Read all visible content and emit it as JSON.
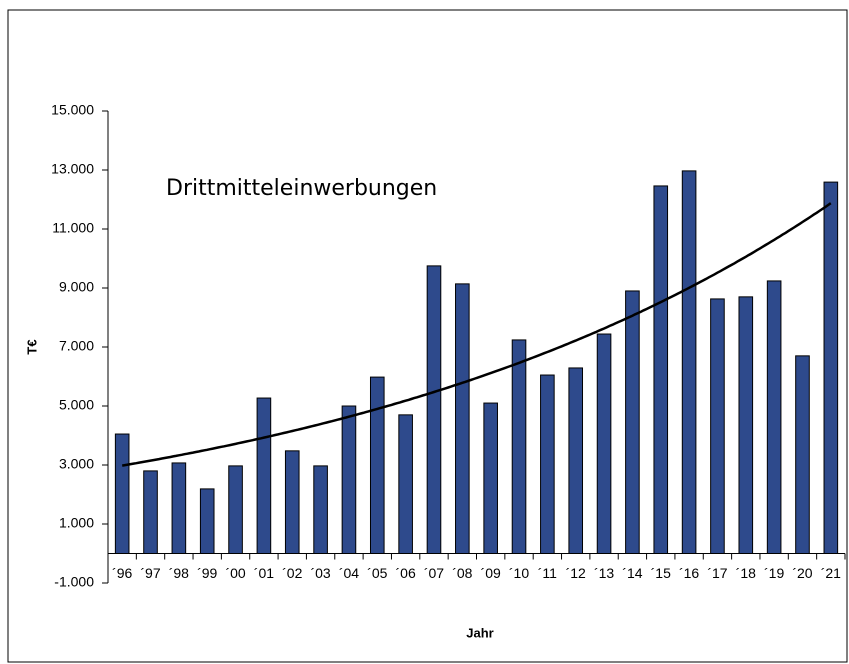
{
  "chart_data": {
    "type": "bar",
    "title": "Drittmitteleinwerbungen",
    "x_label": "Jahr",
    "y_label": "T€",
    "categories": [
      "´96",
      "´97",
      "´98",
      "´99",
      "´00",
      "´01",
      "´02",
      "´03",
      "´04",
      "´05",
      "´06",
      "´07",
      "´08",
      "´09",
      "´10",
      "´11",
      "´12",
      "´13",
      "´14",
      "´15",
      "´16",
      "´17",
      "´18",
      "´19",
      "´20",
      "´21"
    ],
    "values": [
      4050,
      2800,
      3070,
      2190,
      2970,
      5270,
      3480,
      2970,
      5000,
      5980,
      4700,
      9750,
      9140,
      5100,
      7240,
      6050,
      6290,
      7440,
      8900,
      12460,
      12970,
      8630,
      8700,
      9240,
      6700,
      12590
    ],
    "color": "#2e4a8c",
    "trendline": {
      "type": "exponential",
      "color": "#000000"
    },
    "ylim": [
      -1000,
      15000
    ],
    "yticks": [
      {
        "value": -1000,
        "label": "-1.000"
      },
      {
        "value": 1000,
        "label": "1.000"
      },
      {
        "value": 3000,
        "label": "3.000"
      },
      {
        "value": 5000,
        "label": "5.000"
      },
      {
        "value": 7000,
        "label": "7.000"
      },
      {
        "value": 9000,
        "label": "9.000"
      },
      {
        "value": 11000,
        "label": "11.000"
      },
      {
        "value": 13000,
        "label": "13.000"
      },
      {
        "value": 15000,
        "label": "15.000"
      }
    ],
    "grid": false
  }
}
